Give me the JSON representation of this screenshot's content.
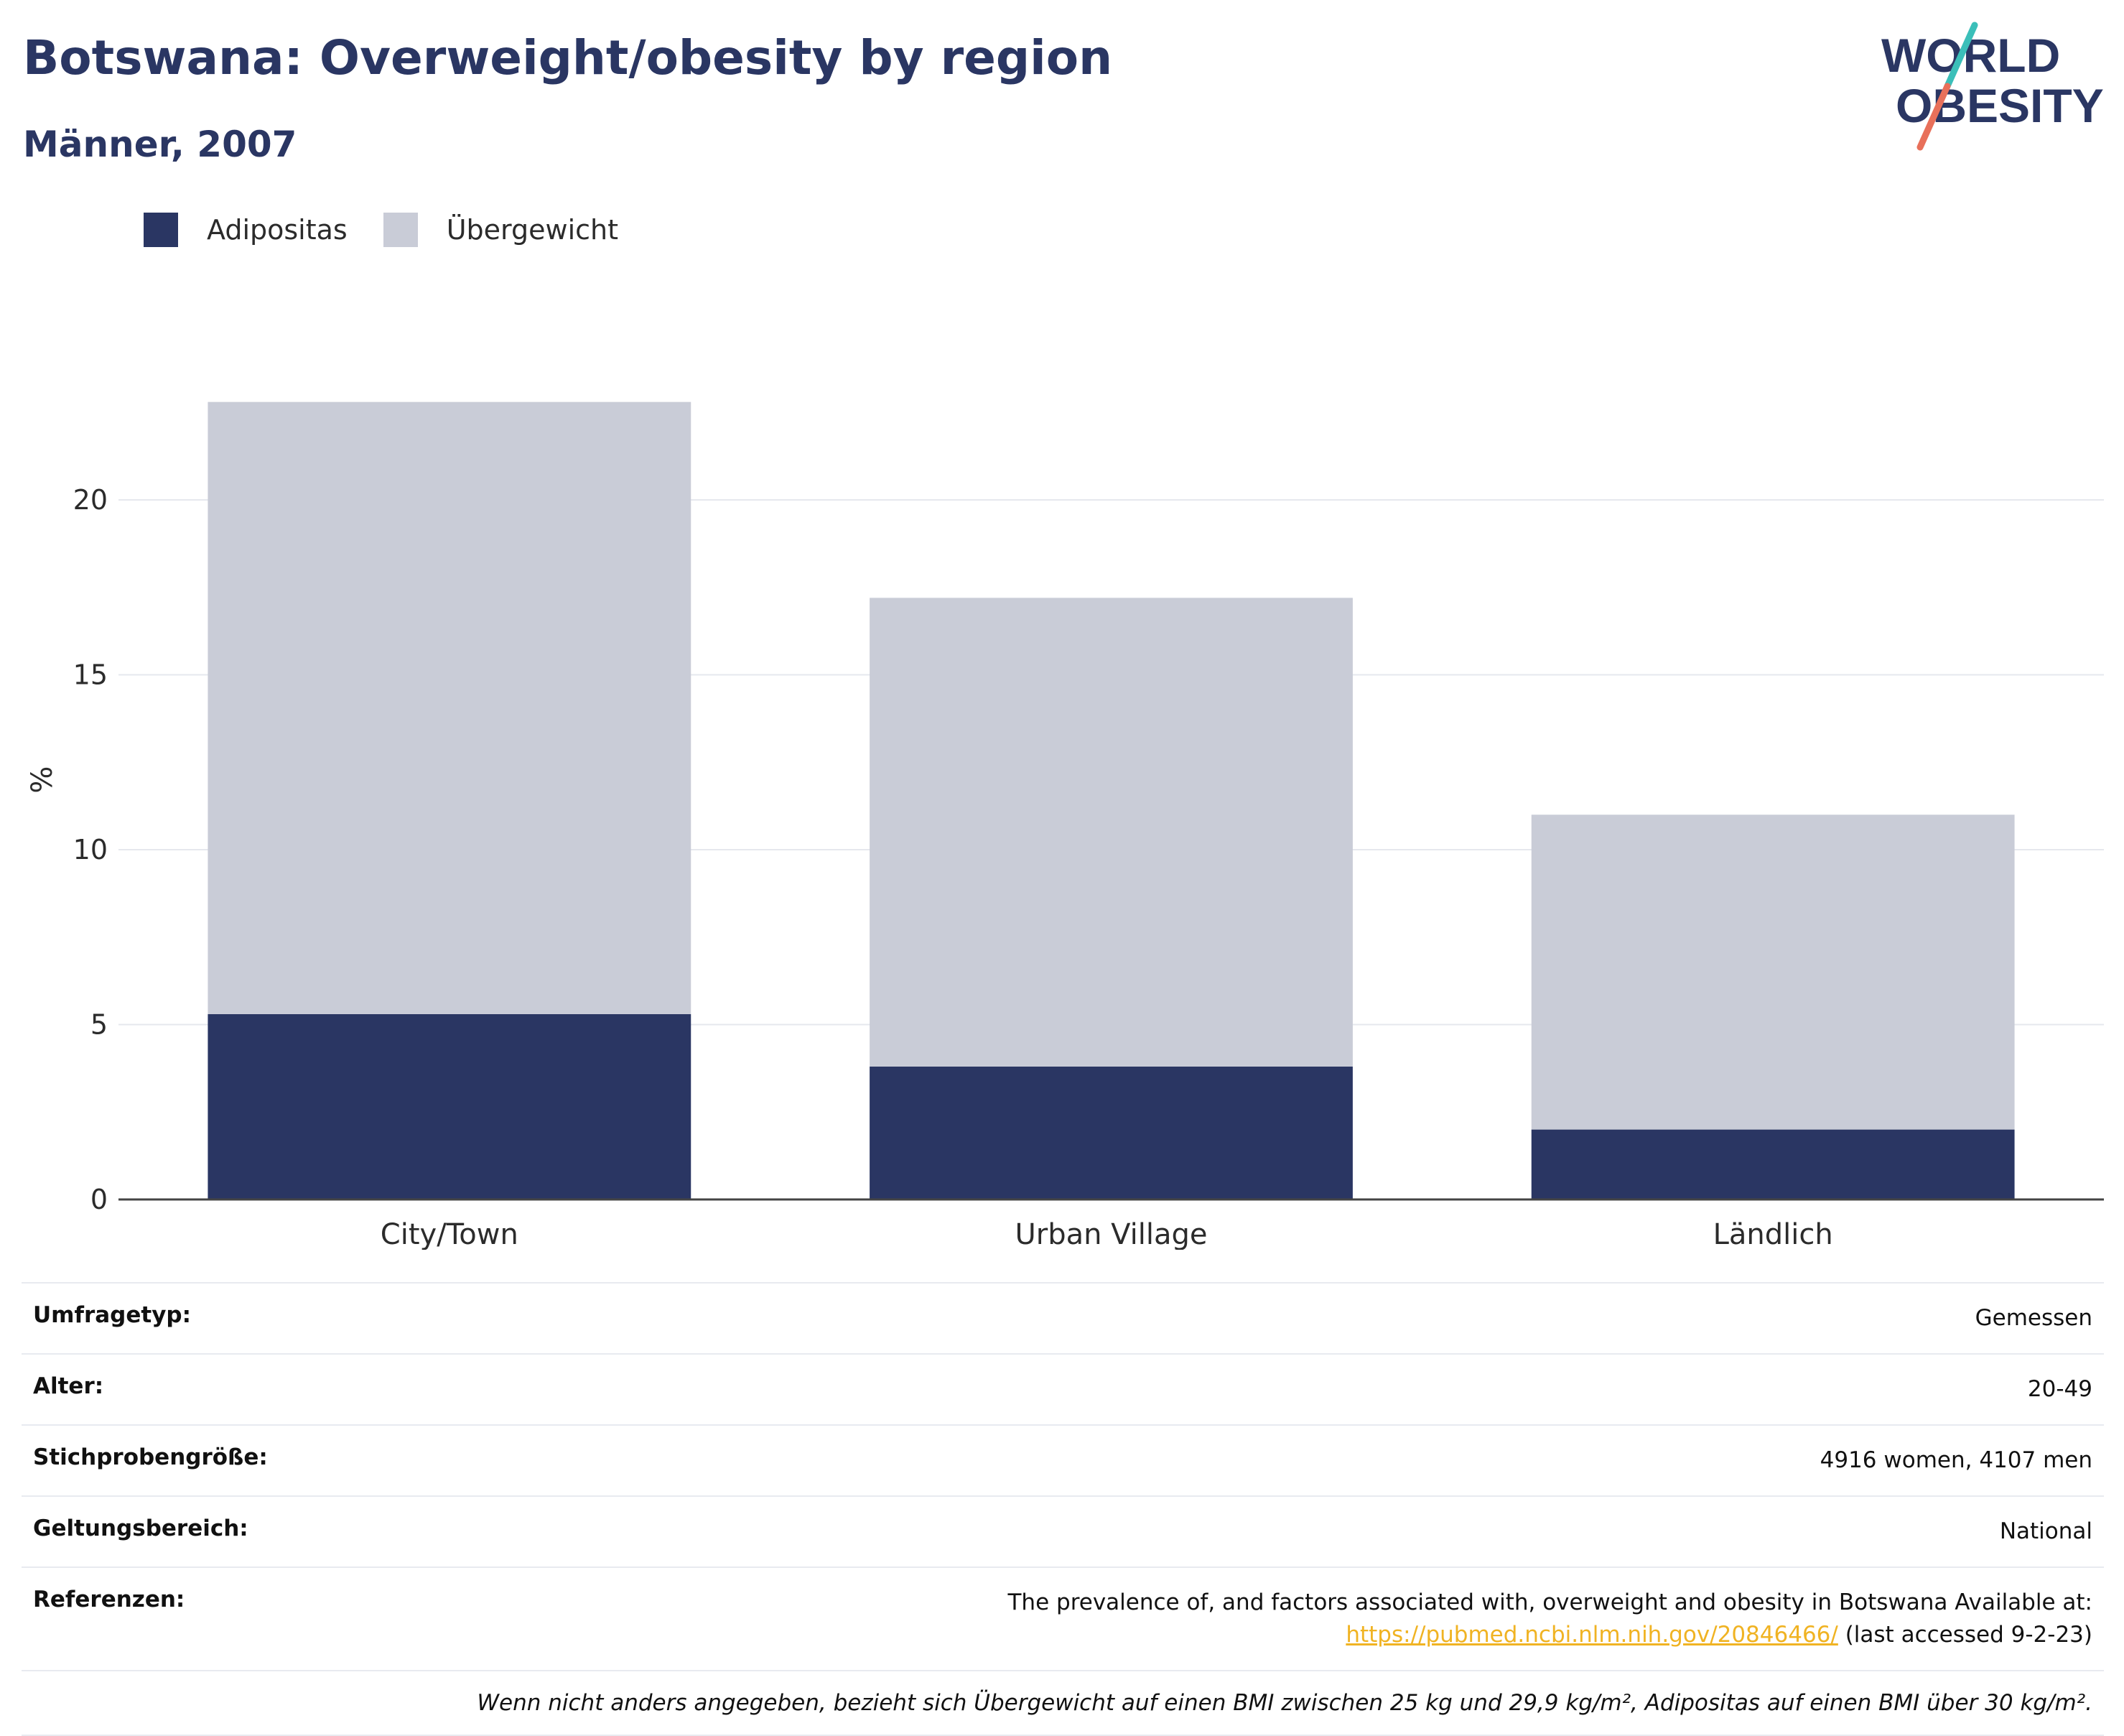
{
  "header": {
    "title": "Botswana: Overweight/obesity by region",
    "subtitle": "Männer, 2007"
  },
  "logo": {
    "line1": "WORLD",
    "line2": "OBESITY"
  },
  "colors": {
    "obesity": "#2a3663",
    "overweight": "#c9ccd7",
    "accent_teal": "#3bbfb9",
    "accent_coral": "#e8705a",
    "link": "#f0b323"
  },
  "chart_data": {
    "type": "bar",
    "stacked": true,
    "categories": [
      "City/Town",
      "Urban Village",
      "Ländlich"
    ],
    "series": [
      {
        "name": "Adipositas",
        "color": "#2a3663",
        "values": [
          5.3,
          3.8,
          2.0
        ]
      },
      {
        "name": "Übergewicht",
        "color": "#c9ccd7",
        "values": [
          17.5,
          13.4,
          9.0
        ]
      }
    ],
    "totals": [
      22.8,
      17.2,
      11.0
    ],
    "ylabel": "%",
    "ylim": [
      0,
      25
    ],
    "yticks": [
      0,
      5,
      10,
      15,
      20
    ],
    "grid": true,
    "legend_position": "top-left"
  },
  "meta": {
    "rows": [
      {
        "key": "Umfragetyp:",
        "value": "Gemessen"
      },
      {
        "key": "Alter:",
        "value": "20-49"
      },
      {
        "key": "Stichprobengröße:",
        "value": "4916 women, 4107 men"
      },
      {
        "key": "Geltungsbereich:",
        "value": "National"
      }
    ],
    "references": {
      "key": "Referenzen:",
      "text": "The prevalence of, and factors associated with, overweight and obesity in Botswana Available at:",
      "link": "https://pubmed.ncbi.nlm.nih.gov/20846466/",
      "suffix": "(last accessed 9-2-23)"
    },
    "note": "Wenn nicht anders angegeben, bezieht sich Übergewicht auf einen BMI zwischen 25 kg und 29,9 kg/m², Adipositas auf einen BMI über 30 kg/m²."
  }
}
